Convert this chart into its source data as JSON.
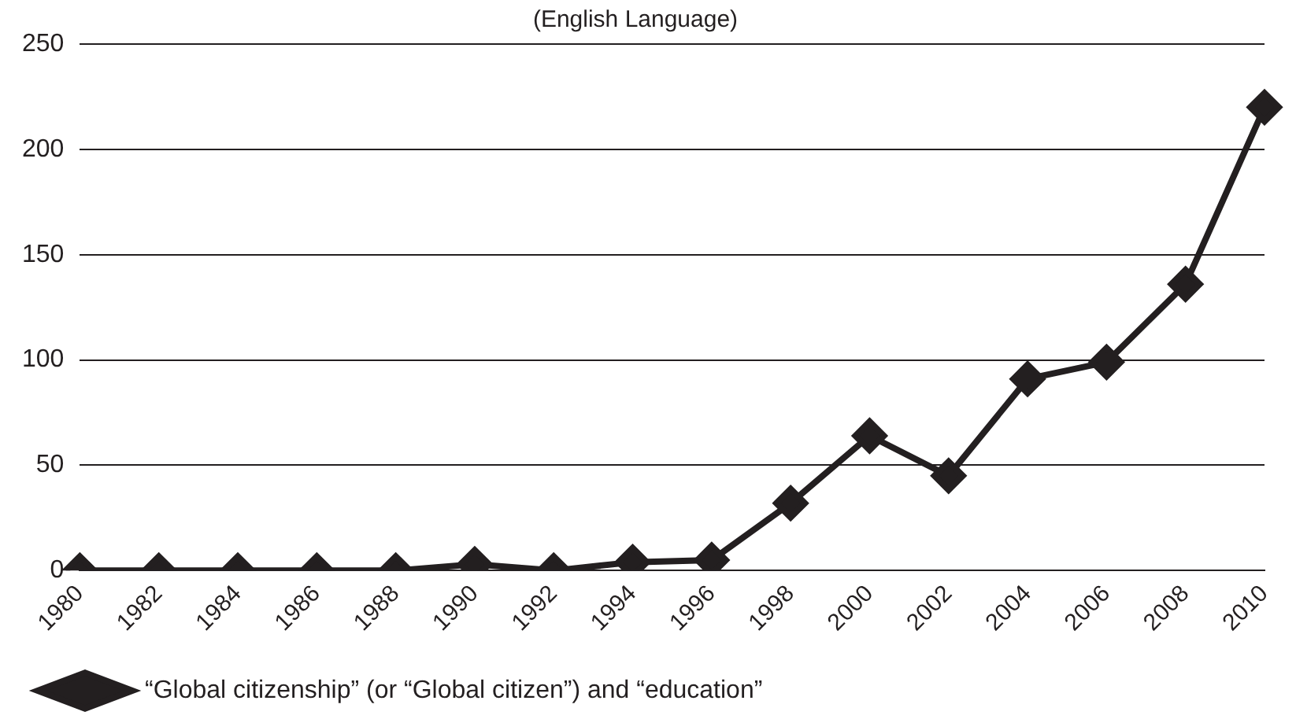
{
  "chart_data": {
    "type": "line",
    "title": "(English Language)",
    "categories": [
      "1980",
      "1982",
      "1984",
      "1986",
      "1988",
      "1990",
      "1992",
      "1994",
      "1996",
      "1998",
      "2000",
      "2002",
      "2004",
      "2006",
      "2008",
      "2010"
    ],
    "series": [
      {
        "name": "“Global citizenship” (or “Global citizen”) and “education”",
        "color": "#231f20",
        "values": [
          0,
          0,
          0,
          0,
          0,
          3,
          0,
          4,
          5,
          32,
          64,
          45,
          91,
          99,
          136,
          220
        ]
      }
    ],
    "ylim": [
      0,
      250
    ],
    "yticks": [
      0,
      50,
      100,
      150,
      200,
      250
    ],
    "grid": "y",
    "legend": "bottom",
    "marker": "diamond",
    "line_style": "solid"
  }
}
